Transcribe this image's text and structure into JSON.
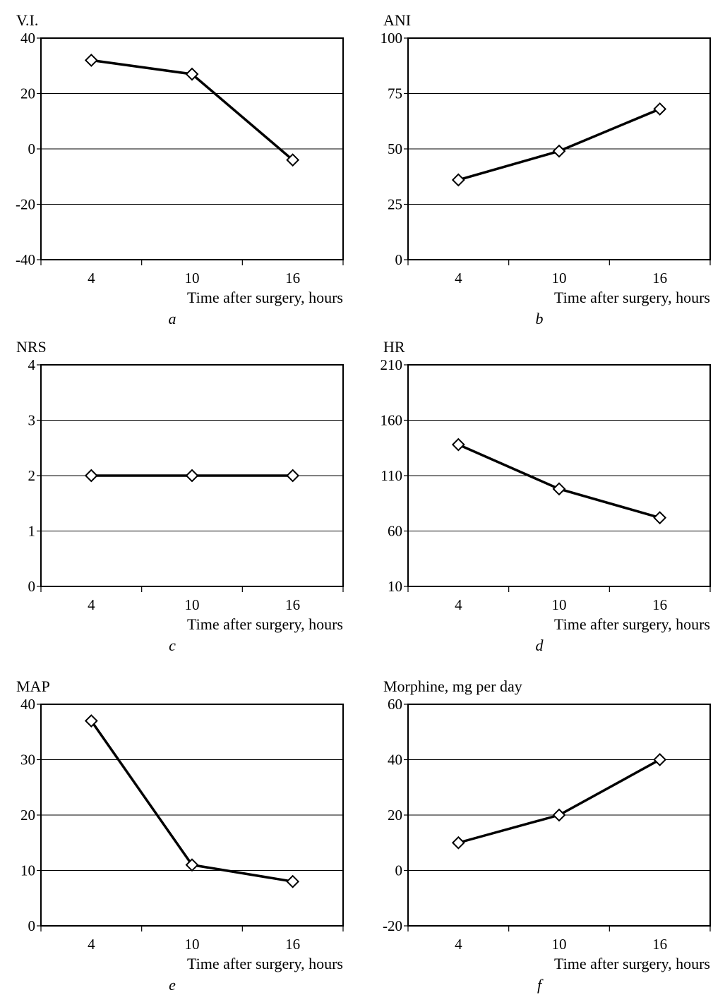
{
  "chart_data": [
    {
      "type": "line",
      "panel": "a",
      "ylabel": "V.I.",
      "xlabel": "Time after surgery, hours",
      "categories": [
        "4",
        "10",
        "16"
      ],
      "series": [
        {
          "values": [
            32,
            27,
            -4
          ]
        }
      ],
      "ylim": [
        -40,
        40
      ],
      "yticks": [
        "-40",
        "-20",
        "0",
        "20",
        "40"
      ],
      "grid": true,
      "marker": "diamond"
    },
    {
      "type": "line",
      "panel": "b",
      "ylabel": "ANI",
      "xlabel": "Time after surgery, hours",
      "categories": [
        "4",
        "10",
        "16"
      ],
      "series": [
        {
          "values": [
            36,
            49,
            68
          ]
        }
      ],
      "ylim": [
        0,
        100
      ],
      "yticks": [
        "0",
        "25",
        "50",
        "75",
        "100"
      ],
      "grid": true,
      "marker": "diamond"
    },
    {
      "type": "line",
      "panel": "c",
      "ylabel": "NRS",
      "xlabel": "Time after surgery, hours",
      "categories": [
        "4",
        "10",
        "16"
      ],
      "series": [
        {
          "values": [
            2,
            2,
            2
          ]
        }
      ],
      "ylim": [
        0,
        4
      ],
      "yticks": [
        "0",
        "1",
        "2",
        "3",
        "4"
      ],
      "grid": true,
      "marker": "diamond"
    },
    {
      "type": "line",
      "panel": "d",
      "ylabel": "HR",
      "xlabel": "Time after surgery, hours",
      "categories": [
        "4",
        "10",
        "16"
      ],
      "series": [
        {
          "values": [
            138,
            98,
            72
          ]
        }
      ],
      "ylim": [
        10,
        210
      ],
      "yticks": [
        "10",
        "60",
        "110",
        "160",
        "210"
      ],
      "grid": true,
      "marker": "diamond"
    },
    {
      "type": "line",
      "panel": "e",
      "ylabel": "MAP",
      "xlabel": "Time after surgery, hours",
      "categories": [
        "4",
        "10",
        "16"
      ],
      "series": [
        {
          "values": [
            37,
            11,
            8
          ]
        }
      ],
      "ylim": [
        0,
        40
      ],
      "yticks": [
        "0",
        "10",
        "20",
        "30",
        "40"
      ],
      "grid": true,
      "marker": "diamond"
    },
    {
      "type": "line",
      "panel": "f",
      "ylabel": "Morphine, mg per day",
      "xlabel": "Time after surgery, hours",
      "categories": [
        "4",
        "10",
        "16"
      ],
      "series": [
        {
          "values": [
            10,
            20,
            40
          ]
        }
      ],
      "ylim": [
        -20,
        60
      ],
      "yticks": [
        "-20",
        "0",
        "20",
        "40",
        "60"
      ],
      "grid": true,
      "marker": "diamond"
    }
  ]
}
